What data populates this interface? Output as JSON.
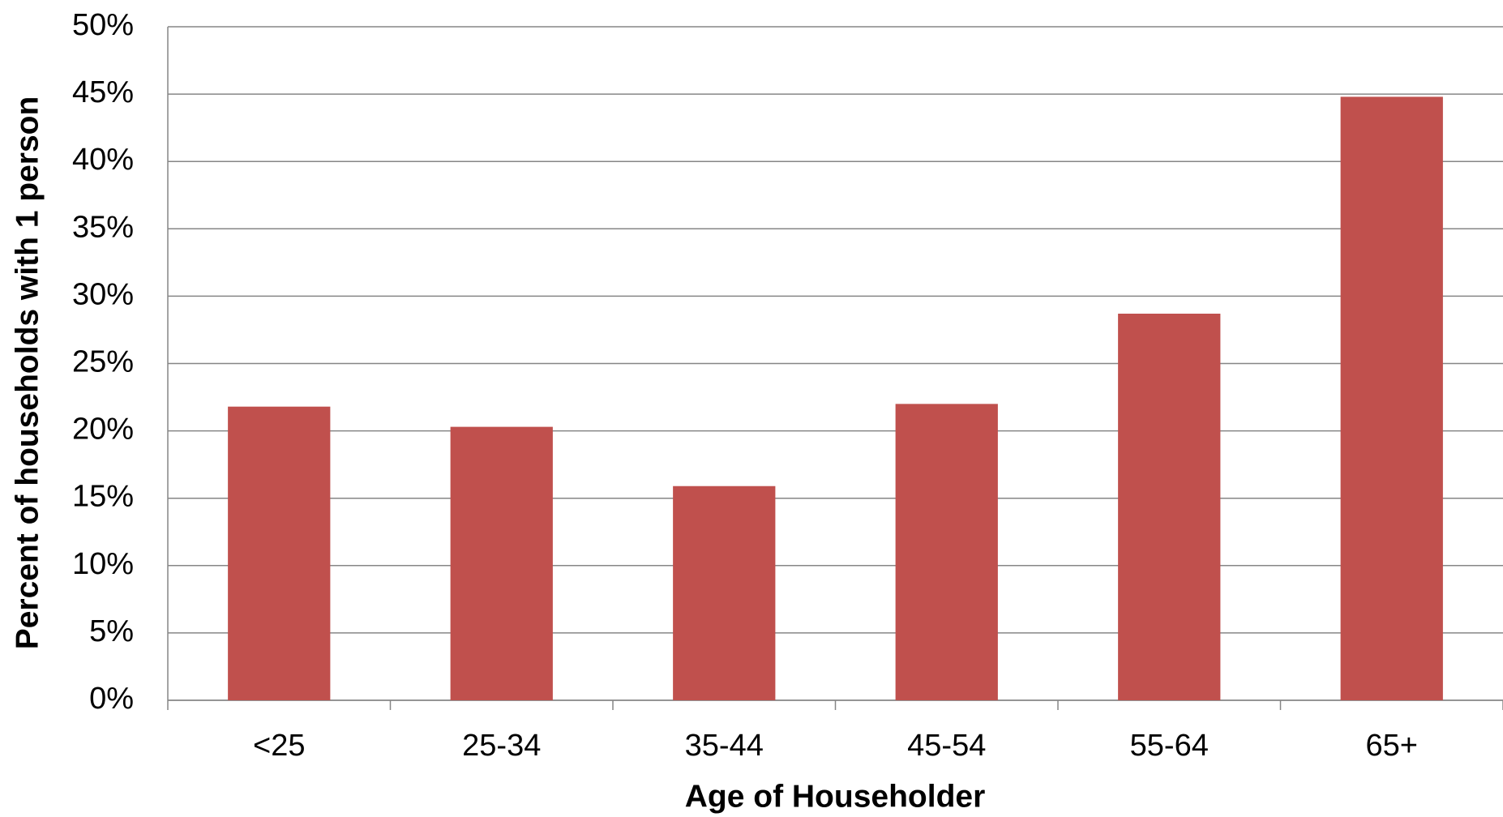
{
  "chart_data": {
    "type": "bar",
    "x_label": "Age of Householder",
    "y_label": "Percent of households with 1 person",
    "categories": [
      "<25",
      "25-34",
      "35-44",
      "45-54",
      "55-64",
      "65+"
    ],
    "values": [
      21.8,
      20.3,
      15.9,
      22.0,
      28.7,
      44.8
    ],
    "color": "#c0504d",
    "ylim": [
      0,
      50
    ],
    "yticks": [
      {
        "value": 0,
        "label": "0%"
      },
      {
        "value": 5,
        "label": "5%"
      },
      {
        "value": 10,
        "label": "10%"
      },
      {
        "value": 15,
        "label": "15%"
      },
      {
        "value": 20,
        "label": "20%"
      },
      {
        "value": 25,
        "label": "25%"
      },
      {
        "value": 30,
        "label": "30%"
      },
      {
        "value": 35,
        "label": "35%"
      },
      {
        "value": 40,
        "label": "40%"
      },
      {
        "value": 45,
        "label": "45%"
      },
      {
        "value": 50,
        "label": "50%"
      }
    ],
    "grid": true
  }
}
